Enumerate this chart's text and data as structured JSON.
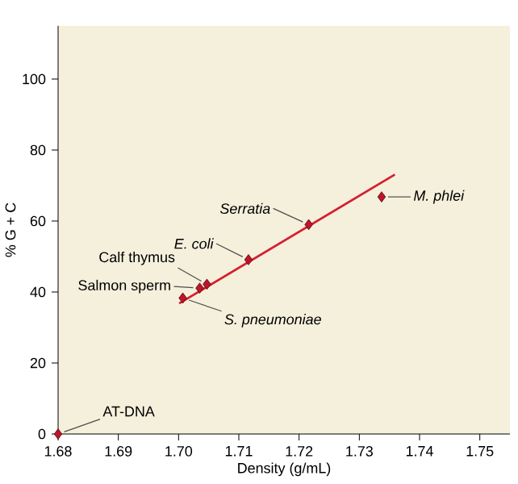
{
  "chart_data": {
    "type": "scatter",
    "xlabel": "Density (g/mL)",
    "ylabel": "% G + C",
    "xlim": [
      1.68,
      1.755
    ],
    "ylim": [
      0,
      115
    ],
    "xticks": [
      {
        "value": 1.68,
        "label": "1.68"
      },
      {
        "value": 1.69,
        "label": "1.69"
      },
      {
        "value": 1.7,
        "label": "1.70"
      },
      {
        "value": 1.71,
        "label": "1.71"
      },
      {
        "value": 1.72,
        "label": "1.72"
      },
      {
        "value": 1.73,
        "label": "1.73"
      },
      {
        "value": 1.74,
        "label": "1.74"
      },
      {
        "value": 1.75,
        "label": "1.75"
      }
    ],
    "yticks": [
      0,
      20,
      40,
      60,
      80,
      100
    ],
    "marker": "diamond",
    "series": [
      {
        "color": "#c0142a",
        "x": [
          1.68,
          1.7007,
          1.7035,
          1.7047,
          1.7116,
          1.7216,
          1.7337
        ],
        "values": [
          0,
          38.3,
          41.1,
          42.2,
          49.1,
          59.0,
          66.8
        ]
      },
      {
        "type": "line",
        "marker": "none",
        "color": "#d42030",
        "x": [
          1.7001,
          1.7359
        ],
        "values": [
          36.8,
          73.1
        ]
      }
    ],
    "annotations": [
      {
        "text": "AT-DNA",
        "x": 1.68,
        "y": 0
      },
      {
        "text": "S. pneumoniae",
        "x": 1.7007,
        "y": 38.3
      },
      {
        "text": "Salmon sperm",
        "x": 1.7035,
        "y": 41.1
      },
      {
        "text": "Calf thymus",
        "x": 1.7047,
        "y": 42.2
      },
      {
        "text": "E. coli",
        "x": 1.7116,
        "y": 49.1
      },
      {
        "text": "Serratia",
        "x": 1.7216,
        "y": 59.0
      },
      {
        "text": "M. phlei",
        "x": 1.7337,
        "y": 66.8
      }
    ]
  }
}
